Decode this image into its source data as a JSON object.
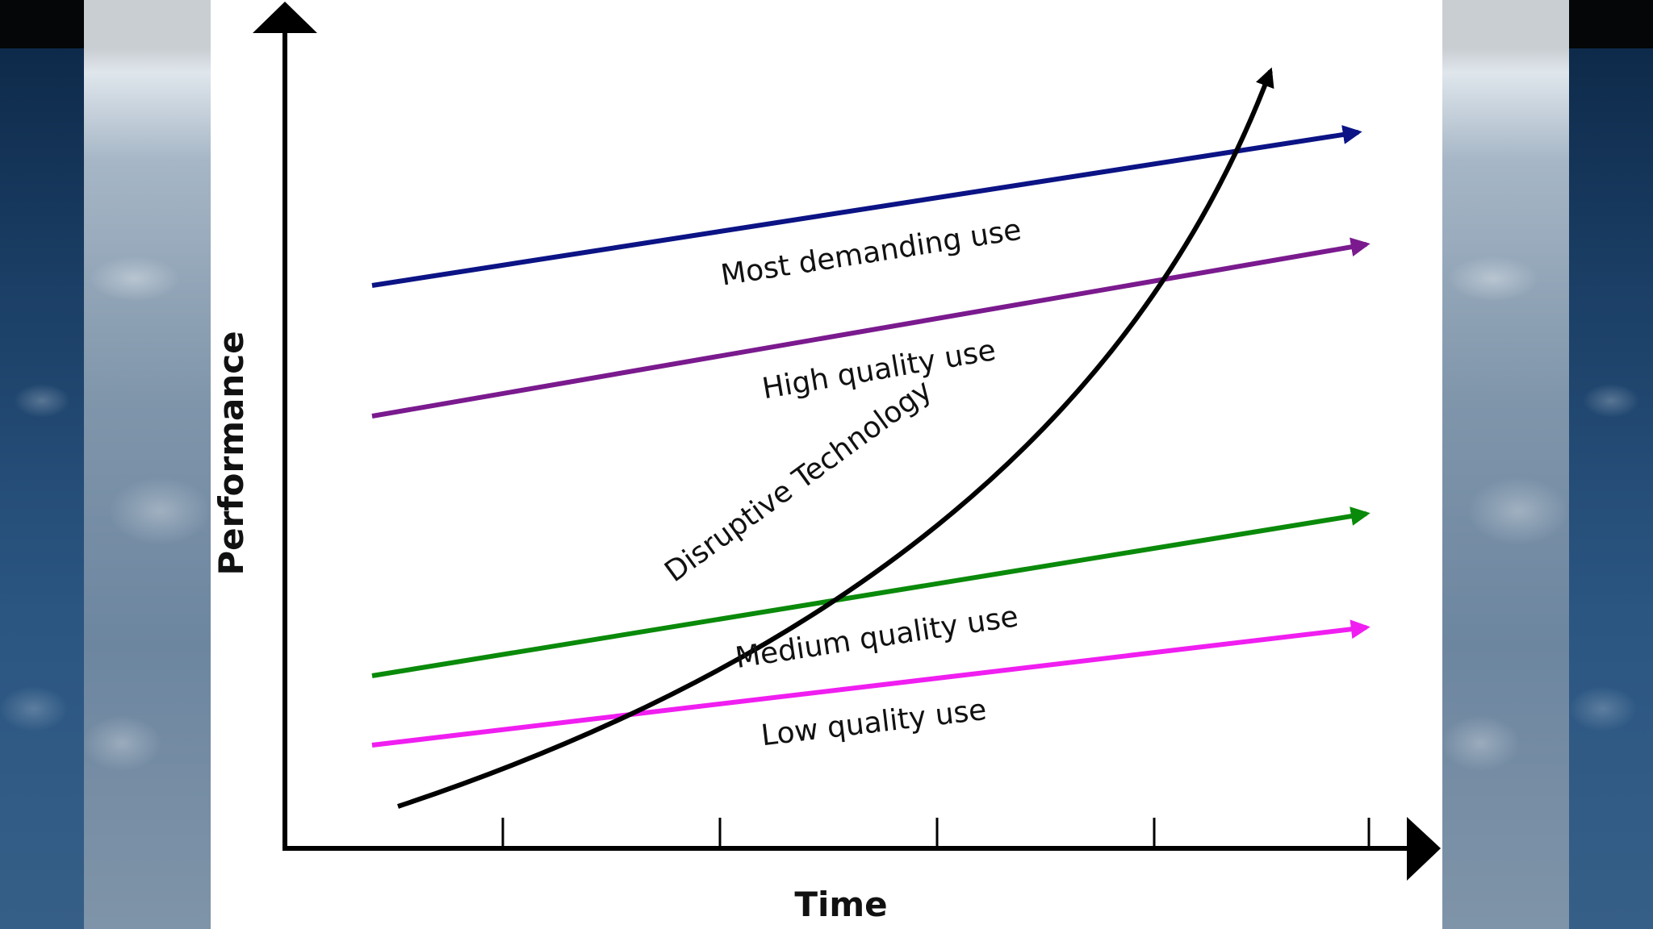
{
  "axes": {
    "y_label": "Performance",
    "x_label": "Time"
  },
  "lines": [
    {
      "label": "Most demanding use",
      "color": "#0b1385"
    },
    {
      "label": "High quality use",
      "color": "#7a1a8e"
    },
    {
      "label": "Medium quality use",
      "color": "#0a8a0a"
    },
    {
      "label": "Low quality use",
      "color": "#f01ef0"
    }
  ],
  "curve": {
    "label": "Disruptive Technology",
    "color": "#000000"
  }
}
